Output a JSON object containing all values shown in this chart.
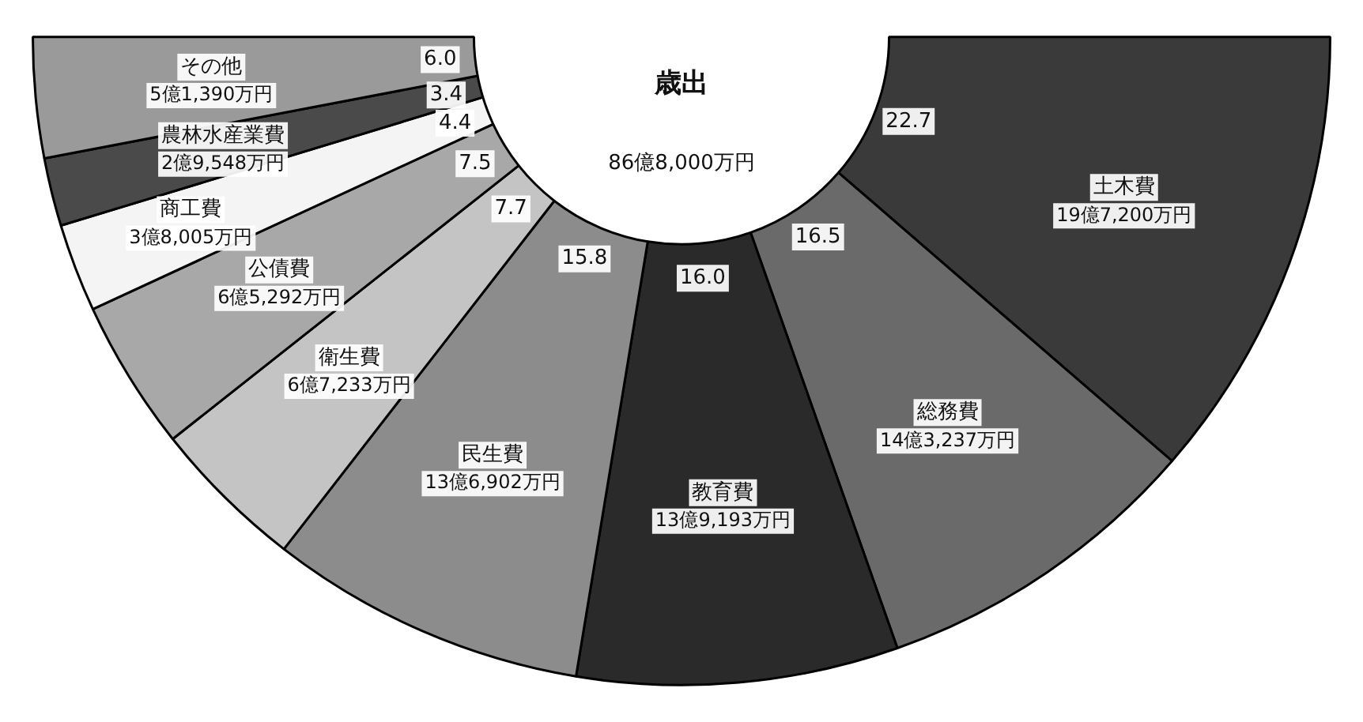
{
  "chart_data": {
    "type": "donut",
    "title": "歳出",
    "subtitle": "86億8,000万円",
    "categories": [
      "土木費",
      "総務費",
      "教育費",
      "民生費",
      "衛生費",
      "公債費",
      "商工費",
      "農林水産業費",
      "その他"
    ],
    "values": [
      22.7,
      16.5,
      16.0,
      15.8,
      7.7,
      7.5,
      4.4,
      3.4,
      6.0
    ],
    "colors": [
      "#3a3a3a",
      "#6a6a6a",
      "#2a2a2a",
      "#8c8c8c",
      "#c4c4c4",
      "#a8a8a8",
      "#f4f4f4",
      "#4a4a4a",
      "#9a9a9a"
    ],
    "value_labels": [
      "22.7",
      "16.5",
      "16.0",
      "15.8",
      "7.7",
      "7.5",
      "4.4",
      "3.4",
      "6.0"
    ],
    "annotations": [
      "19億7,200万円",
      "14億3,237万円",
      "13億9,193万円",
      "13億6,902万円",
      "6億7,233万円",
      "6億5,292万円",
      "3億8,005万円",
      "2億9,548万円",
      "5億1,390万円"
    ]
  }
}
